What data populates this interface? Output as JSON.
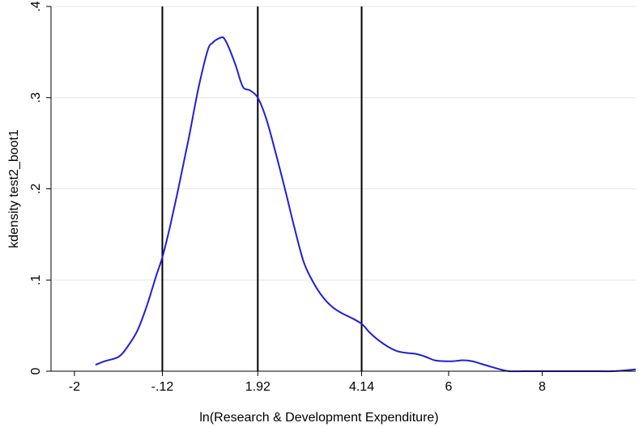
{
  "chart_data": {
    "type": "line",
    "xlabel": "ln(Research & Development Expenditure)",
    "ylabel": "kdensity test2_boot1",
    "xlim": [
      -2.5,
      10
    ],
    "ylim": [
      0,
      0.4
    ],
    "x_ticks": [
      {
        "value": -2,
        "label": "-2"
      },
      {
        "value": -0.12,
        "label": "-.12"
      },
      {
        "value": 1.92,
        "label": "1.92"
      },
      {
        "value": 4.14,
        "label": "4.14"
      },
      {
        "value": 6,
        "label": "6"
      },
      {
        "value": 8,
        "label": "8"
      }
    ],
    "y_ticks": [
      {
        "value": 0,
        "label": "0"
      },
      {
        "value": 0.1,
        "label": ".1"
      },
      {
        "value": 0.2,
        "label": ".2"
      },
      {
        "value": 0.3,
        "label": ".3"
      },
      {
        "value": 0.4,
        "label": ".4"
      }
    ],
    "grid": "horizontal",
    "vertical_lines": [
      -0.12,
      1.92,
      4.14
    ],
    "series": [
      {
        "color": "#1f1fd6",
        "x": [
          -1.55,
          -1.35,
          -1.05,
          -0.85,
          -0.65,
          -0.45,
          -0.25,
          -0.12,
          0.05,
          0.25,
          0.45,
          0.65,
          0.85,
          0.95,
          1.05,
          1.15,
          1.2,
          1.3,
          1.45,
          1.6,
          1.75,
          1.92,
          2.1,
          2.3,
          2.5,
          2.7,
          2.9,
          3.1,
          3.3,
          3.5,
          3.7,
          3.9,
          4.14,
          4.3,
          4.5,
          4.7,
          4.9,
          5.1,
          5.3,
          5.5,
          5.7,
          5.9,
          6.1,
          6.3,
          6.5,
          6.7,
          6.9,
          7.1,
          7.3,
          7.6,
          8.0,
          8.5,
          9.0,
          9.5,
          9.8,
          10.0
        ],
        "y": [
          0.007,
          0.011,
          0.016,
          0.028,
          0.045,
          0.072,
          0.105,
          0.125,
          0.16,
          0.207,
          0.257,
          0.31,
          0.352,
          0.36,
          0.364,
          0.366,
          0.365,
          0.355,
          0.335,
          0.312,
          0.308,
          0.3,
          0.277,
          0.24,
          0.2,
          0.158,
          0.12,
          0.098,
          0.082,
          0.071,
          0.064,
          0.059,
          0.052,
          0.043,
          0.034,
          0.027,
          0.022,
          0.02,
          0.019,
          0.016,
          0.012,
          0.011,
          0.011,
          0.012,
          0.011,
          0.008,
          0.005,
          0.002,
          0.0,
          0.0,
          0.0,
          0.0,
          0.0,
          0.0,
          0.001,
          0.002
        ]
      }
    ]
  }
}
